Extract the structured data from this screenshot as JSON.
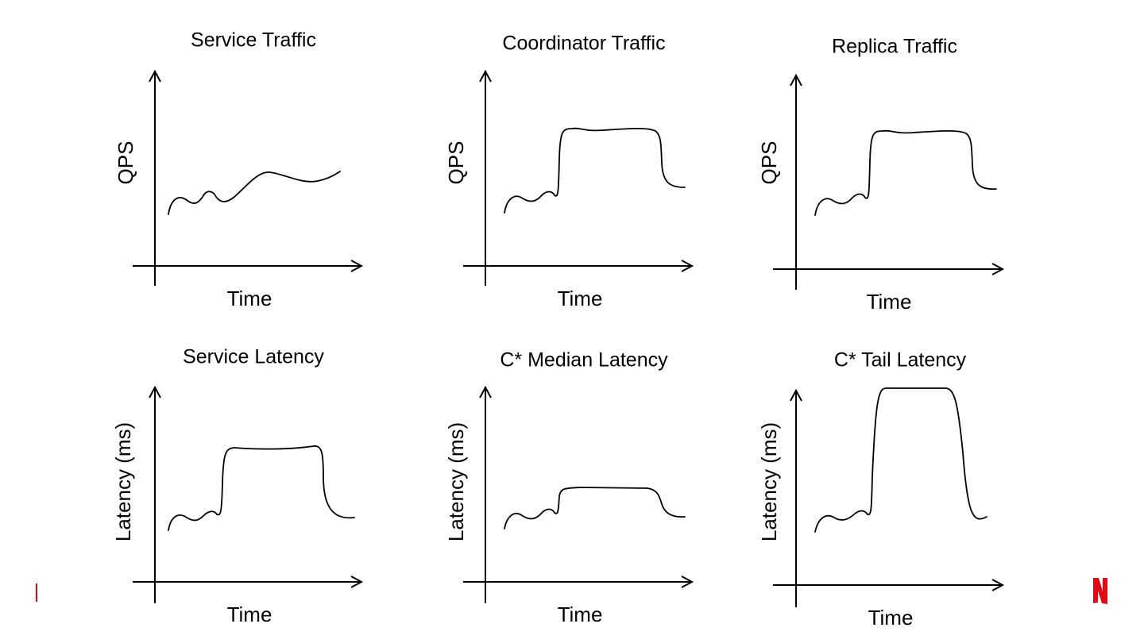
{
  "panels": [
    {
      "title": "Service Traffic",
      "y_label": "QPS",
      "x_label": "Time"
    },
    {
      "title": "Coordinator Traffic",
      "y_label": "QPS",
      "x_label": "Time"
    },
    {
      "title": "Replica Traffic",
      "y_label": "QPS",
      "x_label": "Time"
    },
    {
      "title": "Service Latency",
      "y_label": "Latency (ms)",
      "x_label": "Time"
    },
    {
      "title": "C* Median Latency",
      "y_label": "Latency (ms)",
      "x_label": "Time"
    },
    {
      "title": "C* Tail Latency",
      "y_label": "Latency (ms)",
      "x_label": "Time"
    }
  ]
}
